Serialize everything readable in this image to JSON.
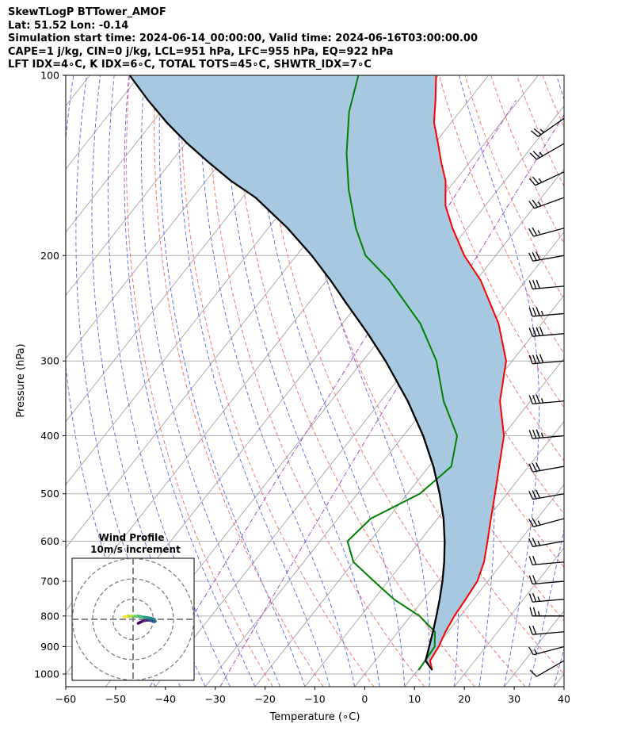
{
  "header": {
    "line1": "SkewTLogP BTTower_AMOF",
    "line2": "Lat: 51.52   Lon: -0.14",
    "line3": "Simulation start time: 2024-06-14_00:00:00, Valid time: 2024-06-16T03:00:00.00",
    "line4": "CAPE=1 j/kg, CIN=0 j/kg, LCL=951 hPa, LFC=955 hPa, EQ=922 hPa",
    "line5": "LFT IDX=4∘C, K IDX=6∘C, TOTAL TOTS=45∘C, SHWTR_IDX=7∘C"
  },
  "chart_data": [
    {
      "type": "line",
      "subtype": "skew-t log-p",
      "xlabel": "Temperature (∘C)",
      "ylabel": "Pressure (hPa)",
      "x_ticks": [
        -60,
        -50,
        -40,
        -30,
        -20,
        -10,
        0,
        10,
        20,
        30,
        40
      ],
      "x_tick_labels": [
        "−60",
        "−50",
        "−40",
        "−30",
        "−20",
        "−10",
        "0",
        "10",
        "20",
        "30",
        "40"
      ],
      "y_ticks": [
        100,
        200,
        300,
        400,
        500,
        600,
        700,
        800,
        900,
        1000
      ],
      "y_tick_labels": [
        "100",
        "200",
        "300",
        "400",
        "500",
        "600",
        "700",
        "800",
        "900",
        "1000"
      ],
      "xlim": [
        -60,
        40
      ],
      "ylim": [
        1050,
        100
      ],
      "y_scale": "log",
      "grid": true,
      "colors": {
        "temperature": "#ff0000",
        "dewpoint": "#008000",
        "parcel": "#000000",
        "cape_fill": "#a6c8e0",
        "isotherm": "#999999",
        "dry_adiabat": "#ff6666",
        "moist_adiabat": "#5a64f0",
        "mixing_ratio": "#a050c8",
        "barb": "#000000"
      },
      "series": [
        {
          "id": "temperature",
          "points": [
            [
              12.9,
              985
            ],
            [
              11.0,
              950
            ],
            [
              10.5,
              900
            ],
            [
              9.5,
              850
            ],
            [
              8.8,
              800
            ],
            [
              8.4,
              750
            ],
            [
              7.9,
              700
            ],
            [
              6.2,
              650
            ],
            [
              3.6,
              600
            ],
            [
              0.7,
              550
            ],
            [
              -2.4,
              500
            ],
            [
              -5.9,
              450
            ],
            [
              -9.8,
              400
            ],
            [
              -16.1,
              350
            ],
            [
              -21.2,
              300
            ],
            [
              -28.6,
              260
            ],
            [
              -39.1,
              220
            ],
            [
              -46.3,
              200
            ],
            [
              -53.0,
              180
            ],
            [
              -58.0,
              165
            ],
            [
              -61.9,
              150
            ],
            [
              -65.6,
              140
            ],
            [
              -69.3,
              130
            ],
            [
              -73.4,
              120
            ],
            [
              -76.7,
              110
            ],
            [
              -80.5,
              100
            ]
          ]
        },
        {
          "id": "dewpoint",
          "points": [
            [
              10.2,
              985
            ],
            [
              10.0,
              950
            ],
            [
              9.7,
              900
            ],
            [
              7.4,
              850
            ],
            [
              1.8,
              800
            ],
            [
              -6.0,
              750
            ],
            [
              -12.8,
              700
            ],
            [
              -20.0,
              650
            ],
            [
              -24.5,
              600
            ],
            [
              -23.4,
              550
            ],
            [
              -17.5,
              500
            ],
            [
              -15.5,
              450
            ],
            [
              -19.2,
              400
            ],
            [
              -27.4,
              350
            ],
            [
              -35.2,
              300
            ],
            [
              -44.3,
              260
            ],
            [
              -57.4,
              220
            ],
            [
              -66.1,
              200
            ],
            [
              -72.4,
              180
            ],
            [
              -80.0,
              155
            ],
            [
              -86.1,
              135
            ],
            [
              -92.2,
              115
            ],
            [
              -96.1,
              100
            ]
          ]
        },
        {
          "id": "parcel",
          "points": [
            [
              12.9,
              985
            ],
            [
              10.1,
              950
            ],
            [
              8.6,
              900
            ],
            [
              7.0,
              850
            ],
            [
              5.2,
              800
            ],
            [
              3.2,
              750
            ],
            [
              0.9,
              700
            ],
            [
              -1.8,
              650
            ],
            [
              -5.0,
              600
            ],
            [
              -8.8,
              550
            ],
            [
              -13.5,
              500
            ],
            [
              -19.1,
              450
            ],
            [
              -26.0,
              400
            ],
            [
              -34.6,
              350
            ],
            [
              -45.4,
              300
            ],
            [
              -53.3,
              270
            ],
            [
              -62.5,
              240
            ],
            [
              -69.2,
              220
            ],
            [
              -76.9,
              200
            ],
            [
              -86.1,
              180
            ],
            [
              -97.4,
              160
            ],
            [
              -105.0,
              150
            ],
            [
              -112.2,
              140
            ],
            [
              -119.6,
              130
            ],
            [
              -127.0,
              120
            ],
            [
              -134.4,
              110
            ],
            [
              -142.0,
              100
            ]
          ]
        }
      ],
      "wind_barbs": {
        "units": "knots",
        "levels": [
          {
            "p": 950,
            "dir": 240,
            "spd": 10
          },
          {
            "p": 900,
            "dir": 255,
            "spd": 15
          },
          {
            "p": 850,
            "dir": 265,
            "spd": 20
          },
          {
            "p": 800,
            "dir": 270,
            "spd": 25
          },
          {
            "p": 750,
            "dir": 265,
            "spd": 25
          },
          {
            "p": 700,
            "dir": 265,
            "spd": 20
          },
          {
            "p": 650,
            "dir": 265,
            "spd": 20
          },
          {
            "p": 600,
            "dir": 260,
            "spd": 25
          },
          {
            "p": 550,
            "dir": 255,
            "spd": 25
          },
          {
            "p": 500,
            "dir": 260,
            "spd": 30
          },
          {
            "p": 450,
            "dir": 260,
            "spd": 30
          },
          {
            "p": 400,
            "dir": 265,
            "spd": 35
          },
          {
            "p": 350,
            "dir": 265,
            "spd": 35
          },
          {
            "p": 300,
            "dir": 265,
            "spd": 40
          },
          {
            "p": 270,
            "dir": 265,
            "spd": 40
          },
          {
            "p": 250,
            "dir": 265,
            "spd": 35
          },
          {
            "p": 225,
            "dir": 265,
            "spd": 30
          },
          {
            "p": 200,
            "dir": 260,
            "spd": 30
          },
          {
            "p": 180,
            "dir": 255,
            "spd": 25
          },
          {
            "p": 160,
            "dir": 250,
            "spd": 25
          },
          {
            "p": 145,
            "dir": 245,
            "spd": 25
          },
          {
            "p": 130,
            "dir": 240,
            "spd": 25
          },
          {
            "p": 118,
            "dir": 235,
            "spd": 25
          }
        ]
      },
      "legend": "none"
    },
    {
      "type": "scatter",
      "subtype": "hodograph",
      "title": "Wind Profile\n10m/s increment",
      "title_lines": [
        "Wind Profile",
        "10m/s increment"
      ],
      "ring_spacing_ms": 10,
      "rings": [
        10,
        20,
        30
      ],
      "grid": true,
      "colormap": "viridis",
      "points": [
        [
          2.5,
          -2.0
        ],
        [
          3.5,
          -1.5
        ],
        [
          5.0,
          -0.8
        ],
        [
          6.5,
          -0.5
        ],
        [
          8.0,
          -0.5
        ],
        [
          9.5,
          -0.8
        ],
        [
          10.5,
          -1.2
        ],
        [
          11.0,
          -1.0
        ],
        [
          10.5,
          0.0
        ],
        [
          9.0,
          0.5
        ],
        [
          7.5,
          0.8
        ],
        [
          6.0,
          1.0
        ],
        [
          4.5,
          1.2
        ],
        [
          3.0,
          1.5
        ],
        [
          1.5,
          1.5
        ],
        [
          0.5,
          1.4
        ],
        [
          -1.0,
          1.5
        ],
        [
          -2.0,
          1.6
        ],
        [
          -3.5,
          1.4
        ],
        [
          -4.5,
          1.2
        ]
      ]
    }
  ]
}
